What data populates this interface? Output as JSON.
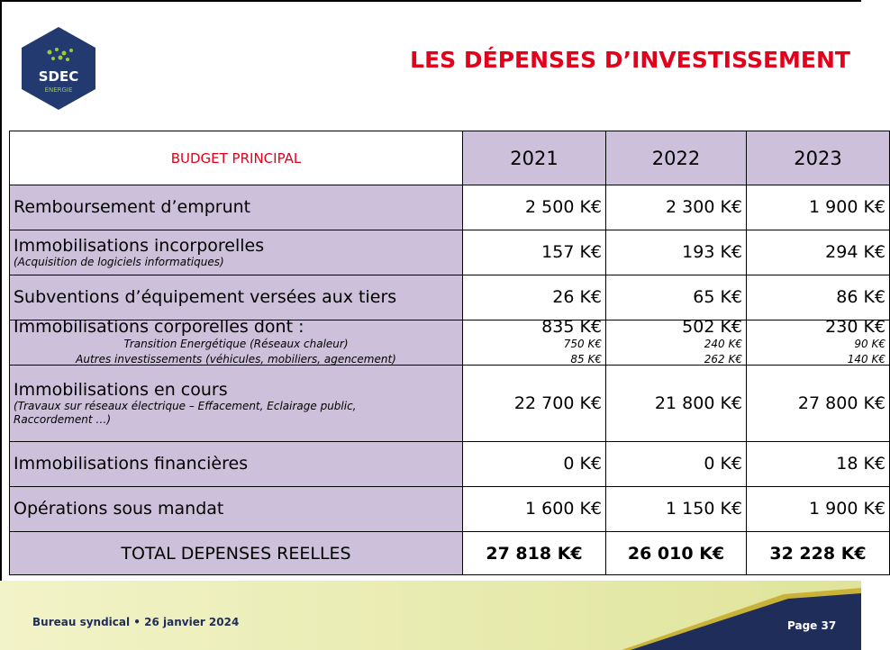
{
  "header": {
    "title": "LES DÉPENSES D’INVESTISSEMENT",
    "logo": {
      "name": "SDEC",
      "subtitle": "ÉNERGIE"
    }
  },
  "table": {
    "columns": [
      "BUDGET PRINCIPAL",
      "2021",
      "2022",
      "2023"
    ],
    "rows": [
      {
        "label": "Remboursement d’emprunt",
        "values": [
          "2 500 K€",
          "2 300 K€",
          "1 900 K€"
        ]
      },
      {
        "label": "Immobilisations incorporelles",
        "note": "(Acquisition de logiciels informatiques)",
        "values": [
          "157 K€",
          "193 K€",
          "294 K€"
        ]
      },
      {
        "label": "Subventions d’équipement versées aux tiers",
        "values": [
          "26 K€",
          "65 K€",
          "86 K€"
        ]
      },
      {
        "label": "Immobilisations corporelles dont :",
        "values": [
          "835 K€",
          "502 K€",
          "230 K€"
        ],
        "details": [
          {
            "label": "Transition Energétique (Réseaux chaleur)",
            "values": [
              "750 K€",
              "240 K€",
              "90 K€"
            ]
          },
          {
            "label": "Autres investissements (véhicules, mobiliers, agencement)",
            "values": [
              "85 K€",
              "262 K€",
              "140 K€"
            ]
          }
        ]
      },
      {
        "label": "Immobilisations en cours",
        "note": "(Travaux sur réseaux électrique – Effacement, Eclairage public, Raccordement …)",
        "values": [
          "22 700 K€",
          "21 800 K€",
          "27 800 K€"
        ]
      },
      {
        "label": "Immobilisations financières",
        "values": [
          "0 K€",
          "0 K€",
          "18 K€"
        ]
      },
      {
        "label": "Opérations sous mandat",
        "values": [
          "1 600 K€",
          "1 150 K€",
          "1 900 K€"
        ]
      }
    ],
    "total": {
      "label": "TOTAL DEPENSES REELLES",
      "values": [
        "27 818 K€",
        "26 010 K€",
        "32 228 K€"
      ]
    }
  },
  "footer": {
    "meeting": "Bureau syndical • 26 janvier 2024",
    "page": "Page 37"
  }
}
